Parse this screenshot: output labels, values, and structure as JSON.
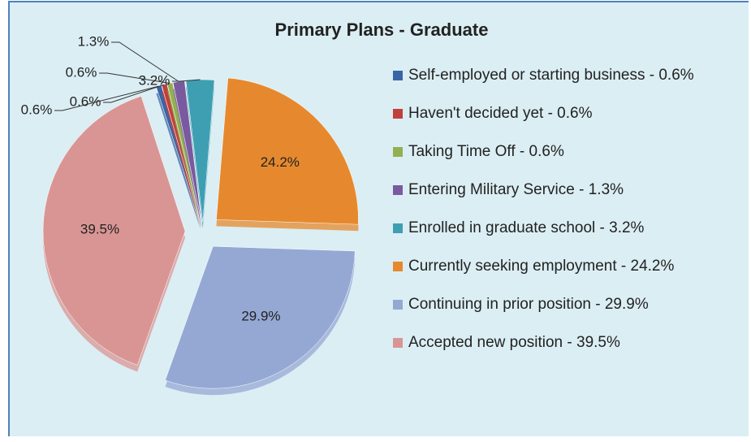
{
  "chart_data": {
    "type": "pie",
    "title": "Primary Plans - Graduate",
    "categories": [
      "Self-employed or starting business - 0.6%",
      "Haven't decided yet - 0.6%",
      "Taking Time Off - 0.6%",
      "Entering Military Service - 1.3%",
      "Enrolled in graduate school - 3.2%",
      "Currently seeking employment - 24.2%",
      "Continuing in prior position - 29.9%",
      "Accepted new position - 39.5%"
    ],
    "values": [
      0.6,
      0.6,
      0.6,
      1.3,
      3.2,
      24.2,
      29.9,
      39.5
    ],
    "value_labels": [
      "0.6%",
      "0.6%",
      "0.6%",
      "1.3%",
      "3.2%",
      "24.2%",
      "29.9%",
      "39.5%"
    ],
    "colors": [
      "#3a64a6",
      "#c0403c",
      "#92b050",
      "#7a5a9e",
      "#3e9fb2",
      "#e6892e",
      "#95a8d4",
      "#d99594"
    ],
    "legend": "right"
  }
}
